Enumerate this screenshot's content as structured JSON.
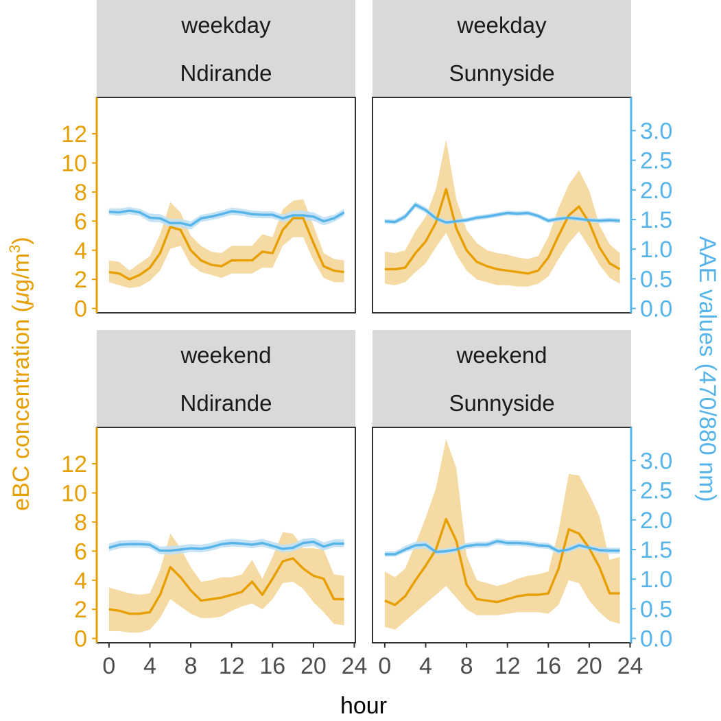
{
  "colors": {
    "ebc": "#E69F00",
    "ebc_band": "#F6DAA3",
    "aae": "#56B4E9",
    "aae_band": "#BFE0F4",
    "strip_bg": "#D9D9D9",
    "panel_border": "#000000",
    "tick_text": "#4D4D4D"
  },
  "chart_data": {
    "type": "line",
    "facets": {
      "rows": [
        "weekday",
        "weekend"
      ],
      "cols": [
        "Ndirande",
        "Sunnyside"
      ]
    },
    "xlabel": "hour",
    "ylabel_left_text": "eBC concentration (",
    "ylabel_left_mu": "μ",
    "ylabel_left_unit": "g/m",
    "ylabel_left_sup": "3",
    "ylabel_left_close": ")",
    "ylabel_right": "AAE values (470/880 nm)",
    "x_ticks": [
      0,
      4,
      8,
      12,
      16,
      20,
      24
    ],
    "xlim": [
      -1.2,
      24.1
    ],
    "y_left_ticks": [
      0,
      2,
      4,
      6,
      8,
      10,
      12
    ],
    "y_left_lim": [
      -0.3,
      14.5
    ],
    "y_right_ticks": [
      0.0,
      0.5,
      1.0,
      1.5,
      2.0,
      2.5,
      3.0
    ],
    "y_right_tick_labels": [
      "0.0",
      "0.5",
      "1.0",
      "1.5",
      "2.0",
      "2.5",
      "3.0"
    ],
    "y_right_lim": [
      -0.074,
      3.56
    ],
    "hours": [
      0,
      1,
      2,
      3,
      4,
      5,
      6,
      7,
      8,
      9,
      10,
      11,
      12,
      13,
      14,
      15,
      16,
      17,
      18,
      19,
      20,
      21,
      22,
      23
    ],
    "panels": [
      {
        "row": "weekday",
        "col": "Ndirande",
        "ebc_mean": [
          2.5,
          2.4,
          2.0,
          2.3,
          2.8,
          3.8,
          5.6,
          5.4,
          4.0,
          3.3,
          3.0,
          2.9,
          3.3,
          3.3,
          3.3,
          3.9,
          3.8,
          5.4,
          6.2,
          6.2,
          4.5,
          2.9,
          2.6,
          2.5
        ],
        "ebc_lower": [
          1.8,
          1.6,
          1.4,
          1.5,
          1.9,
          2.6,
          4.1,
          4.3,
          3.0,
          2.5,
          2.3,
          2.1,
          2.4,
          2.4,
          2.4,
          2.8,
          2.8,
          4.3,
          4.9,
          4.9,
          3.3,
          2.1,
          1.8,
          1.8
        ],
        "ebc_upper": [
          3.3,
          3.2,
          2.6,
          3.1,
          3.6,
          5.1,
          7.3,
          6.6,
          5.0,
          4.3,
          3.9,
          3.8,
          4.3,
          4.3,
          4.3,
          5.1,
          4.9,
          6.8,
          7.4,
          7.5,
          5.7,
          3.8,
          3.4,
          3.3
        ],
        "aae_mean": [
          1.63,
          1.62,
          1.65,
          1.62,
          1.53,
          1.52,
          1.44,
          1.44,
          1.4,
          1.52,
          1.55,
          1.59,
          1.64,
          1.62,
          1.59,
          1.58,
          1.58,
          1.52,
          1.57,
          1.57,
          1.55,
          1.47,
          1.52,
          1.62
        ],
        "aae_lower": [
          1.58,
          1.56,
          1.59,
          1.56,
          1.46,
          1.45,
          1.37,
          1.37,
          1.33,
          1.46,
          1.49,
          1.53,
          1.58,
          1.56,
          1.53,
          1.52,
          1.52,
          1.46,
          1.49,
          1.49,
          1.48,
          1.4,
          1.46,
          1.56
        ],
        "aae_upper": [
          1.69,
          1.69,
          1.71,
          1.68,
          1.6,
          1.59,
          1.51,
          1.51,
          1.47,
          1.58,
          1.61,
          1.65,
          1.7,
          1.68,
          1.65,
          1.64,
          1.64,
          1.58,
          1.65,
          1.65,
          1.62,
          1.54,
          1.58,
          1.68
        ]
      },
      {
        "row": "weekday",
        "col": "Sunnyside",
        "ebc_mean": [
          2.7,
          2.7,
          2.8,
          3.8,
          4.6,
          5.9,
          8.2,
          5.5,
          4.0,
          3.2,
          2.9,
          2.7,
          2.6,
          2.5,
          2.4,
          2.6,
          3.5,
          5.0,
          6.4,
          7.0,
          5.9,
          4.2,
          3.1,
          2.7
        ],
        "ebc_lower": [
          1.7,
          1.6,
          1.8,
          2.5,
          3.1,
          4.2,
          5.2,
          3.7,
          2.6,
          2.0,
          1.8,
          1.6,
          1.6,
          1.5,
          1.5,
          1.7,
          2.2,
          3.4,
          4.5,
          5.3,
          4.2,
          3.0,
          2.1,
          1.7
        ],
        "ebc_upper": [
          3.9,
          3.8,
          4.0,
          5.3,
          6.3,
          8.2,
          11.6,
          7.5,
          5.4,
          4.5,
          4.0,
          3.8,
          3.7,
          3.5,
          3.4,
          3.6,
          4.9,
          6.9,
          8.5,
          9.5,
          8.1,
          5.7,
          4.4,
          3.8
        ],
        "aae_mean": [
          1.47,
          1.46,
          1.55,
          1.75,
          1.66,
          1.52,
          1.45,
          1.47,
          1.49,
          1.53,
          1.55,
          1.58,
          1.61,
          1.6,
          1.61,
          1.56,
          1.48,
          1.51,
          1.53,
          1.51,
          1.49,
          1.48,
          1.49,
          1.48
        ],
        "aae_lower": [
          1.43,
          1.42,
          1.5,
          1.7,
          1.61,
          1.47,
          1.41,
          1.43,
          1.45,
          1.49,
          1.51,
          1.54,
          1.57,
          1.56,
          1.57,
          1.52,
          1.44,
          1.47,
          1.49,
          1.47,
          1.45,
          1.44,
          1.45,
          1.44
        ],
        "aae_upper": [
          1.51,
          1.5,
          1.6,
          1.8,
          1.71,
          1.57,
          1.49,
          1.51,
          1.53,
          1.57,
          1.59,
          1.62,
          1.65,
          1.64,
          1.65,
          1.6,
          1.52,
          1.55,
          1.57,
          1.55,
          1.53,
          1.52,
          1.53,
          1.52
        ]
      },
      {
        "row": "weekend",
        "col": "Ndirande",
        "ebc_mean": [
          2.0,
          1.9,
          1.7,
          1.7,
          1.8,
          3.0,
          4.9,
          4.2,
          3.3,
          2.6,
          2.7,
          2.8,
          3.0,
          3.2,
          3.9,
          3.0,
          4.1,
          5.3,
          5.5,
          4.8,
          4.3,
          4.1,
          2.7,
          2.7
        ],
        "ebc_lower": [
          0.5,
          0.5,
          0.4,
          0.4,
          0.6,
          1.4,
          2.7,
          2.2,
          1.7,
          1.4,
          1.4,
          1.5,
          1.9,
          2.2,
          2.4,
          2.0,
          2.7,
          3.8,
          3.9,
          3.4,
          2.5,
          1.8,
          1.0,
          0.9
        ],
        "ebc_upper": [
          3.5,
          3.3,
          3.1,
          3.0,
          3.1,
          4.7,
          7.2,
          6.2,
          4.9,
          3.9,
          4.0,
          4.2,
          4.2,
          4.4,
          5.4,
          4.1,
          5.6,
          7.3,
          7.2,
          6.2,
          6.2,
          6.1,
          4.4,
          4.3
        ],
        "aae_mean": [
          1.53,
          1.58,
          1.59,
          1.59,
          1.58,
          1.48,
          1.48,
          1.5,
          1.52,
          1.51,
          1.54,
          1.59,
          1.61,
          1.6,
          1.58,
          1.61,
          1.56,
          1.51,
          1.53,
          1.61,
          1.63,
          1.55,
          1.6,
          1.6
        ],
        "aae_lower": [
          1.47,
          1.52,
          1.53,
          1.53,
          1.52,
          1.42,
          1.41,
          1.43,
          1.46,
          1.45,
          1.48,
          1.53,
          1.55,
          1.54,
          1.52,
          1.55,
          1.5,
          1.45,
          1.47,
          1.54,
          1.56,
          1.48,
          1.54,
          1.54
        ],
        "aae_upper": [
          1.6,
          1.65,
          1.66,
          1.66,
          1.64,
          1.55,
          1.56,
          1.57,
          1.59,
          1.58,
          1.61,
          1.66,
          1.68,
          1.67,
          1.65,
          1.68,
          1.63,
          1.58,
          1.6,
          1.68,
          1.7,
          1.62,
          1.67,
          1.67
        ]
      },
      {
        "row": "weekend",
        "col": "Sunnyside",
        "ebc_mean": [
          2.6,
          2.3,
          2.9,
          4.0,
          5.0,
          6.1,
          8.2,
          6.7,
          3.7,
          2.7,
          2.6,
          2.5,
          2.7,
          2.9,
          3.0,
          3.0,
          3.1,
          4.8,
          7.5,
          7.2,
          6.2,
          4.9,
          3.1,
          3.1
        ],
        "ebc_lower": [
          0.8,
          0.6,
          1.2,
          1.8,
          2.4,
          3.0,
          3.6,
          2.8,
          2.0,
          1.6,
          1.6,
          1.6,
          1.7,
          1.8,
          1.8,
          1.8,
          1.7,
          2.3,
          4.0,
          3.8,
          2.6,
          1.8,
          1.2,
          1.0
        ],
        "ebc_upper": [
          4.6,
          4.2,
          4.8,
          6.5,
          8.3,
          10.3,
          13.7,
          11.7,
          5.7,
          4.0,
          3.8,
          3.6,
          3.8,
          4.1,
          4.3,
          4.4,
          4.6,
          7.4,
          11.3,
          11.2,
          9.9,
          8.4,
          5.4,
          5.6
        ],
        "aae_mean": [
          1.42,
          1.42,
          1.5,
          1.57,
          1.58,
          1.46,
          1.47,
          1.5,
          1.56,
          1.58,
          1.58,
          1.64,
          1.61,
          1.61,
          1.6,
          1.57,
          1.56,
          1.47,
          1.5,
          1.57,
          1.53,
          1.49,
          1.48,
          1.48
        ],
        "aae_lower": [
          1.38,
          1.38,
          1.45,
          1.51,
          1.52,
          1.41,
          1.42,
          1.45,
          1.51,
          1.53,
          1.53,
          1.59,
          1.56,
          1.56,
          1.55,
          1.52,
          1.51,
          1.42,
          1.45,
          1.52,
          1.48,
          1.44,
          1.43,
          1.43
        ],
        "aae_upper": [
          1.47,
          1.47,
          1.56,
          1.63,
          1.64,
          1.51,
          1.52,
          1.55,
          1.61,
          1.63,
          1.63,
          1.69,
          1.66,
          1.66,
          1.65,
          1.62,
          1.61,
          1.52,
          1.55,
          1.62,
          1.58,
          1.54,
          1.53,
          1.53
        ]
      }
    ]
  }
}
